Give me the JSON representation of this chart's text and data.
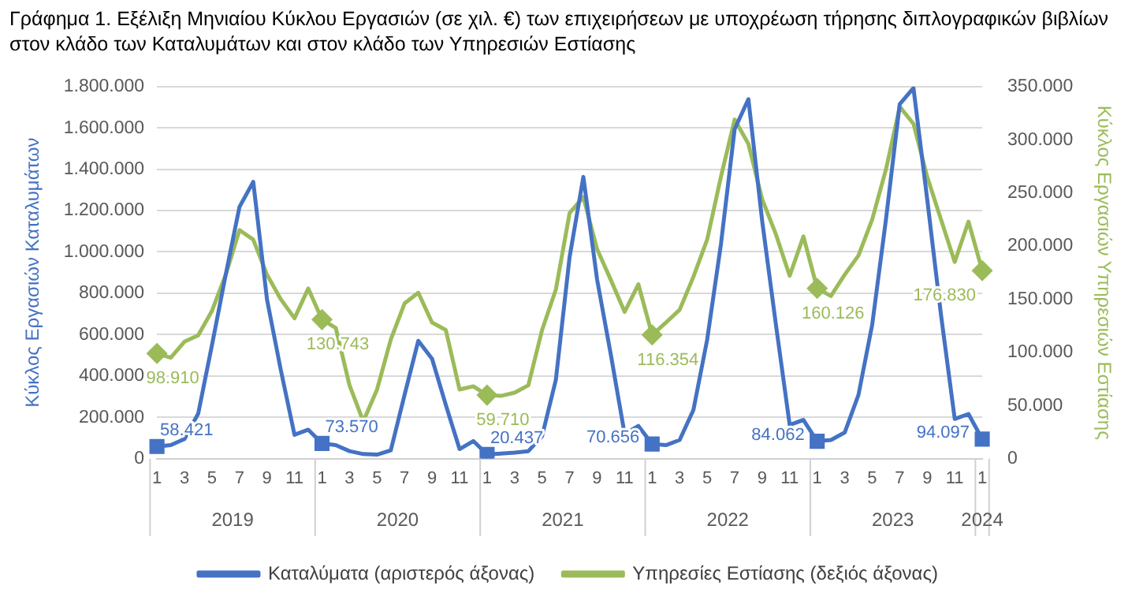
{
  "chart_data": {
    "type": "line",
    "title": "Γράφημα 1. Εξέλιξη Μηνιαίου Κύκλου Εργασιών (σε χιλ. €) των επιχειρήσεων με υποχρέωση τήρησης διπλογραφικών βιβλίων στον κλάδο των Καταλυμάτων και στον κλάδο των Υπηρεσιών Εστίασης",
    "ylabel": "Κύκλος Εργασιών Καταλυμάτων",
    "y2label": "Κύκλος Εργασιών Υπηρεσιών Εστίασης",
    "categories": [
      "1",
      null,
      "3",
      null,
      "5",
      null,
      "7",
      null,
      "9",
      null,
      "11",
      null,
      "1",
      null,
      "3",
      null,
      "5",
      null,
      "7",
      null,
      "9",
      null,
      "11",
      null,
      "1",
      null,
      "3",
      null,
      "5",
      null,
      "7",
      null,
      "9",
      null,
      "11",
      null,
      "1",
      null,
      "3",
      null,
      "5",
      null,
      "7",
      null,
      "9",
      null,
      "11",
      null,
      "1",
      null,
      "3",
      null,
      "5",
      null,
      "7",
      null,
      "9",
      null,
      "11",
      null,
      "1"
    ],
    "annotations": [
      "2019",
      "2020",
      "2021",
      "2022",
      "2023",
      "2024"
    ],
    "series": [
      {
        "name": "Καταλύματα (αριστερός άξονας)",
        "color": "#4472c4",
        "axis": "y",
        "values": [
          58421,
          65000,
          95000,
          218000,
          550000,
          890000,
          1218000,
          1339000,
          770000,
          430000,
          115000,
          140000,
          73570,
          65000,
          36000,
          22000,
          19000,
          40000,
          308000,
          570000,
          483000,
          260000,
          46000,
          85000,
          20437,
          24000,
          29000,
          36000,
          109000,
          381000,
          975000,
          1363000,
          866000,
          502000,
          119000,
          158000,
          70656,
          65000,
          90000,
          235000,
          575000,
          1036000,
          1594000,
          1739000,
          1150000,
          648000,
          163000,
          187000,
          84062,
          90000,
          126000,
          308000,
          648000,
          1157000,
          1715000,
          1793000,
          1254000,
          696000,
          192000,
          216000,
          94097
        ],
        "value_labels": [
          "58.421",
          null,
          null,
          null,
          null,
          null,
          null,
          null,
          null,
          null,
          null,
          null,
          "73.570",
          null,
          null,
          null,
          null,
          null,
          null,
          null,
          null,
          null,
          null,
          null,
          "20.437",
          null,
          null,
          null,
          null,
          null,
          null,
          null,
          null,
          null,
          null,
          null,
          "70.656",
          null,
          null,
          null,
          null,
          null,
          null,
          null,
          null,
          null,
          null,
          null,
          "84.062",
          null,
          null,
          null,
          null,
          null,
          null,
          null,
          null,
          null,
          null,
          null,
          "94.097"
        ]
      },
      {
        "name": "Υπηρεσίες Εστίασης (δεξιός άξονας)",
        "color": "#9bbb59",
        "axis": "y2",
        "values": [
          98910,
          95000,
          110000,
          116000,
          139000,
          173000,
          215000,
          206000,
          173000,
          150000,
          132000,
          160000,
          130743,
          123000,
          69000,
          35000,
          65000,
          112000,
          146000,
          156000,
          128000,
          121000,
          65000,
          68000,
          59710,
          59000,
          62000,
          69000,
          121000,
          159000,
          231000,
          246000,
          197000,
          168000,
          138000,
          164000,
          116354,
          128000,
          140000,
          171000,
          206000,
          265000,
          319000,
          296000,
          244000,
          211000,
          172000,
          209000,
          160126,
          153000,
          173000,
          191000,
          225000,
          272000,
          331000,
          315000,
          265000,
          225000,
          185000,
          223000,
          176830
        ],
        "value_labels": [
          "98.910",
          null,
          null,
          null,
          null,
          null,
          null,
          null,
          null,
          null,
          null,
          null,
          "130.743",
          null,
          null,
          null,
          null,
          null,
          null,
          null,
          null,
          null,
          null,
          null,
          "59.710",
          null,
          null,
          null,
          null,
          null,
          null,
          null,
          null,
          null,
          null,
          null,
          "116.354",
          null,
          null,
          null,
          null,
          null,
          null,
          null,
          null,
          null,
          null,
          null,
          "160.126",
          null,
          null,
          null,
          null,
          null,
          null,
          null,
          null,
          null,
          null,
          null,
          "176.830"
        ]
      }
    ],
    "ylim": [
      0,
      1800000
    ],
    "yticks": [
      0,
      {
        "value": 200000,
        "label": "200.000"
      },
      {
        "value": 400000,
        "label": "400.000"
      },
      {
        "value": 600000,
        "label": "600.000"
      },
      {
        "value": 800000,
        "label": "800.000"
      },
      {
        "value": 1000000,
        "label": "1.000.000"
      },
      {
        "value": 1200000,
        "label": "1.200.000"
      },
      {
        "value": 1400000,
        "label": "1.400.000"
      },
      {
        "value": 1600000,
        "label": "1.600.000"
      },
      {
        "value": 1800000,
        "label": "1.800.000"
      }
    ],
    "y2lim": [
      0,
      350000
    ],
    "y2ticks": [
      0,
      {
        "value": 50000,
        "label": "50.000"
      },
      {
        "value": 100000,
        "label": "100.000"
      },
      {
        "value": 150000,
        "label": "150.000"
      },
      {
        "value": 200000,
        "label": "200.000"
      },
      {
        "value": 250000,
        "label": "250.000"
      },
      {
        "value": 300000,
        "label": "300.000"
      },
      {
        "value": 350000,
        "label": "350.000"
      }
    ],
    "grid": "y",
    "legend": "bottom",
    "line_style": "solid"
  }
}
